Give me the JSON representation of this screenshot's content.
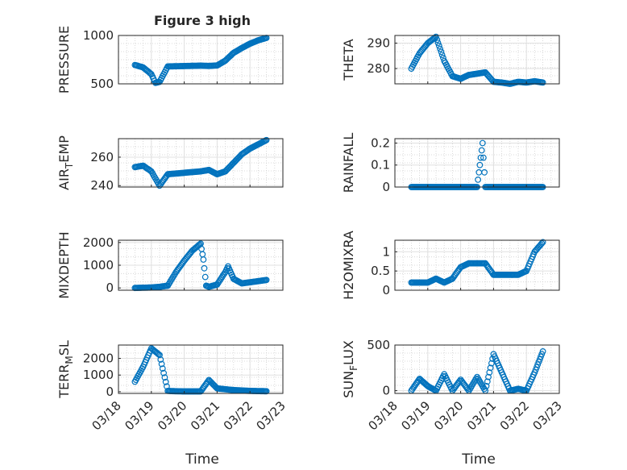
{
  "figure": {
    "title": "Figure 3 high",
    "xlabel_left": "Time",
    "xlabel_right": "Time",
    "marker_color": "#0072bd",
    "x_date_ticks": [
      "03/18",
      "03/19",
      "03/20",
      "03/21",
      "03/22",
      "03/23"
    ]
  },
  "chart_data": [
    {
      "type": "scatter",
      "id": "pressure",
      "ylabel": "PRESSURE",
      "ylim": [
        500,
        1000
      ],
      "yticks": [
        500,
        1000
      ],
      "grid": true,
      "x": [
        "03/18 12:00",
        "03/18 18:00",
        "03/19 00:00",
        "03/19 03:00",
        "03/19 06:00",
        "03/19 12:00",
        "03/19 18:00",
        "03/20 00:00",
        "03/20 12:00",
        "03/20 18:00",
        "03/21 00:00",
        "03/21 06:00",
        "03/21 12:00",
        "03/21 18:00",
        "03/22 00:00",
        "03/22 06:00",
        "03/22 12:00"
      ],
      "y": [
        695,
        670,
        600,
        510,
        520,
        680,
        682,
        684,
        688,
        685,
        690,
        740,
        820,
        870,
        915,
        950,
        975
      ]
    },
    {
      "type": "scatter",
      "id": "theta",
      "ylabel": "THETA",
      "ylim": [
        274,
        293
      ],
      "yticks": [
        280,
        290
      ],
      "grid": true,
      "x": [
        "03/18 12:00",
        "03/18 18:00",
        "03/19 00:00",
        "03/19 06:00",
        "03/19 12:00",
        "03/19 18:00",
        "03/20 00:00",
        "03/20 06:00",
        "03/20 12:00",
        "03/20 18:00",
        "03/21 00:00",
        "03/21 06:00",
        "03/21 12:00",
        "03/21 18:00",
        "03/22 00:00",
        "03/22 06:00",
        "03/22 12:00"
      ],
      "y": [
        280,
        286,
        290,
        292.5,
        283,
        277,
        276,
        277.5,
        278,
        278.5,
        274.8,
        274.5,
        274,
        274.8,
        274.5,
        275,
        274.5
      ]
    },
    {
      "type": "scatter",
      "id": "air_temp",
      "ylabel": "AIR_TEMP",
      "ylim": [
        239,
        273
      ],
      "yticks": [
        240,
        260
      ],
      "grid": true,
      "x": [
        "03/18 12:00",
        "03/18 18:00",
        "03/19 00:00",
        "03/19 06:00",
        "03/19 12:00",
        "03/20 00:00",
        "03/20 12:00",
        "03/20 18:00",
        "03/21 00:00",
        "03/21 06:00",
        "03/21 12:00",
        "03/21 18:00",
        "03/22 00:00",
        "03/22 06:00",
        "03/22 12:00"
      ],
      "y": [
        253,
        254,
        250,
        240,
        248,
        249,
        250,
        251,
        248,
        250,
        256,
        262,
        266,
        269,
        272
      ]
    },
    {
      "type": "scatter",
      "id": "rainfall",
      "ylabel": "RAINFALL",
      "ylim": [
        0,
        0.22
      ],
      "yticks": [
        0,
        0.1,
        0.2
      ],
      "grid": true,
      "x": [
        "03/18 12:00",
        "03/19 00:00",
        "03/19 12:00",
        "03/20 00:00",
        "03/20 12:00",
        "03/20 16:00",
        "03/20 18:00",
        "03/21 00:00",
        "03/21 12:00",
        "03/22 00:00",
        "03/22 12:00"
      ],
      "y": [
        0,
        0,
        0,
        0,
        0,
        0.2,
        0,
        0,
        0,
        0,
        0
      ]
    },
    {
      "type": "scatter",
      "id": "mixdepth",
      "ylabel": "MIXDEPTH",
      "ylim": [
        -100,
        2100
      ],
      "yticks": [
        0,
        1000,
        2000
      ],
      "grid": true,
      "x": [
        "03/18 12:00",
        "03/19 00:00",
        "03/19 06:00",
        "03/19 12:00",
        "03/19 18:00",
        "03/20 00:00",
        "03/20 06:00",
        "03/20 12:00",
        "03/20 14:00",
        "03/20 16:00",
        "03/20 18:00",
        "03/21 00:00",
        "03/21 06:00",
        "03/21 08:00",
        "03/21 12:00",
        "03/21 18:00",
        "03/22 00:00",
        "03/22 06:00",
        "03/22 12:00"
      ],
      "y": [
        0,
        20,
        50,
        100,
        700,
        1200,
        1650,
        1950,
        1250,
        100,
        50,
        150,
        700,
        950,
        400,
        200,
        250,
        300,
        350
      ]
    },
    {
      "type": "scatter",
      "id": "h2omixra",
      "ylabel": "H2OMIXRA",
      "ylim": [
        0,
        1.3
      ],
      "yticks": [
        0,
        0.5,
        1
      ],
      "grid": true,
      "x": [
        "03/18 12:00",
        "03/19 00:00",
        "03/19 06:00",
        "03/19 12:00",
        "03/19 18:00",
        "03/20 00:00",
        "03/20 06:00",
        "03/20 12:00",
        "03/20 18:00",
        "03/21 00:00",
        "03/21 12:00",
        "03/21 18:00",
        "03/22 00:00",
        "03/22 06:00",
        "03/22 12:00"
      ],
      "y": [
        0.2,
        0.2,
        0.3,
        0.2,
        0.3,
        0.6,
        0.7,
        0.7,
        0.7,
        0.4,
        0.4,
        0.4,
        0.5,
        1.0,
        1.25
      ]
    },
    {
      "type": "scatter",
      "id": "terr_msl",
      "ylabel": "TERR_MSL",
      "ylim": [
        -100,
        2800
      ],
      "yticks": [
        0,
        1000,
        2000
      ],
      "grid": true,
      "x": [
        "03/18 12:00",
        "03/18 18:00",
        "03/19 00:00",
        "03/19 06:00",
        "03/19 12:00",
        "03/19 18:00",
        "03/20 00:00",
        "03/20 12:00",
        "03/20 18:00",
        "03/21 00:00",
        "03/21 12:00",
        "03/22 00:00",
        "03/22 12:00"
      ],
      "y": [
        600,
        1500,
        2600,
        2200,
        50,
        30,
        20,
        20,
        700,
        200,
        100,
        50,
        30
      ]
    },
    {
      "type": "scatter",
      "id": "sun_flux",
      "ylabel": "SUN_FLUX",
      "ylim": [
        -30,
        500
      ],
      "yticks": [
        0,
        500
      ],
      "grid": true,
      "x": [
        "03/18 12:00",
        "03/18 18:00",
        "03/19 00:00",
        "03/19 06:00",
        "03/19 12:00",
        "03/19 18:00",
        "03/20 00:00",
        "03/20 06:00",
        "03/20 12:00",
        "03/20 18:00",
        "03/21 00:00",
        "03/21 06:00",
        "03/21 12:00",
        "03/21 18:00",
        "03/22 00:00",
        "03/22 06:00",
        "03/22 12:00"
      ],
      "y": [
        0,
        130,
        50,
        0,
        180,
        0,
        120,
        0,
        150,
        0,
        400,
        200,
        0,
        20,
        0,
        200,
        430
      ]
    }
  ]
}
